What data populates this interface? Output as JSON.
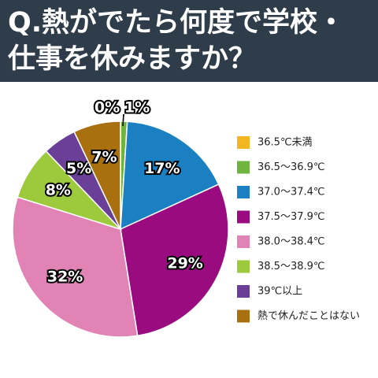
{
  "chart_data": {
    "type": "pie",
    "title": "Q.熱がでたら何度で学校・仕事を休みますか？",
    "categories": [
      "36.5℃未満",
      "36.5～36.9℃",
      "37.0～37.4℃",
      "37.5～37.9℃",
      "38.0～38.4℃",
      "38.5～38.9℃",
      "39℃以上",
      "熱で休んだことはない"
    ],
    "values": [
      0,
      1,
      17,
      29,
      32,
      8,
      5,
      7
    ],
    "value_labels": [
      "0%",
      "1%",
      "17%",
      "29%",
      "32%",
      "8%",
      "5%",
      "7%"
    ],
    "colors": [
      "#f4b620",
      "#6fb43f",
      "#1a80c2",
      "#9a0b7f",
      "#e283b6",
      "#9dc93c",
      "#6a3f98",
      "#a8700f"
    ]
  }
}
